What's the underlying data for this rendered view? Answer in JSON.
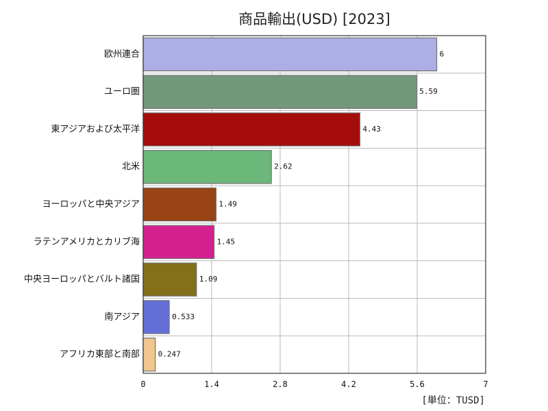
{
  "chart_data": {
    "type": "bar",
    "orientation": "horizontal",
    "title": "商品輸出(USD) [2023]",
    "unit_label": "[単位：TUSD]",
    "categories": [
      "欧州連合",
      "ユーロ圏",
      "東アジアおよび太平洋",
      "北米",
      "ヨーロッパと中央アジア",
      "ラテンアメリカとカリブ海",
      "中央ヨーロッパとバルト諸国",
      "南アジア",
      "アフリカ東部と南部"
    ],
    "values": [
      6,
      5.59,
      4.43,
      2.62,
      1.49,
      1.45,
      1.09,
      0.533,
      0.247
    ],
    "value_labels": [
      "6",
      "5.59",
      "4.43",
      "2.62",
      "1.49",
      "1.45",
      "1.09",
      "0.533",
      "0.247"
    ],
    "colors": [
      "#adaee6",
      "#72987a",
      "#a50c0c",
      "#6cb87a",
      "#984414",
      "#d52090",
      "#84701a",
      "#6470d8",
      "#eec68e"
    ],
    "xlim": [
      0,
      7
    ],
    "xticks": [
      "0",
      "1.4",
      "2.8",
      "4.2",
      "5.6",
      "7"
    ],
    "grid": true,
    "legend": "none"
  }
}
